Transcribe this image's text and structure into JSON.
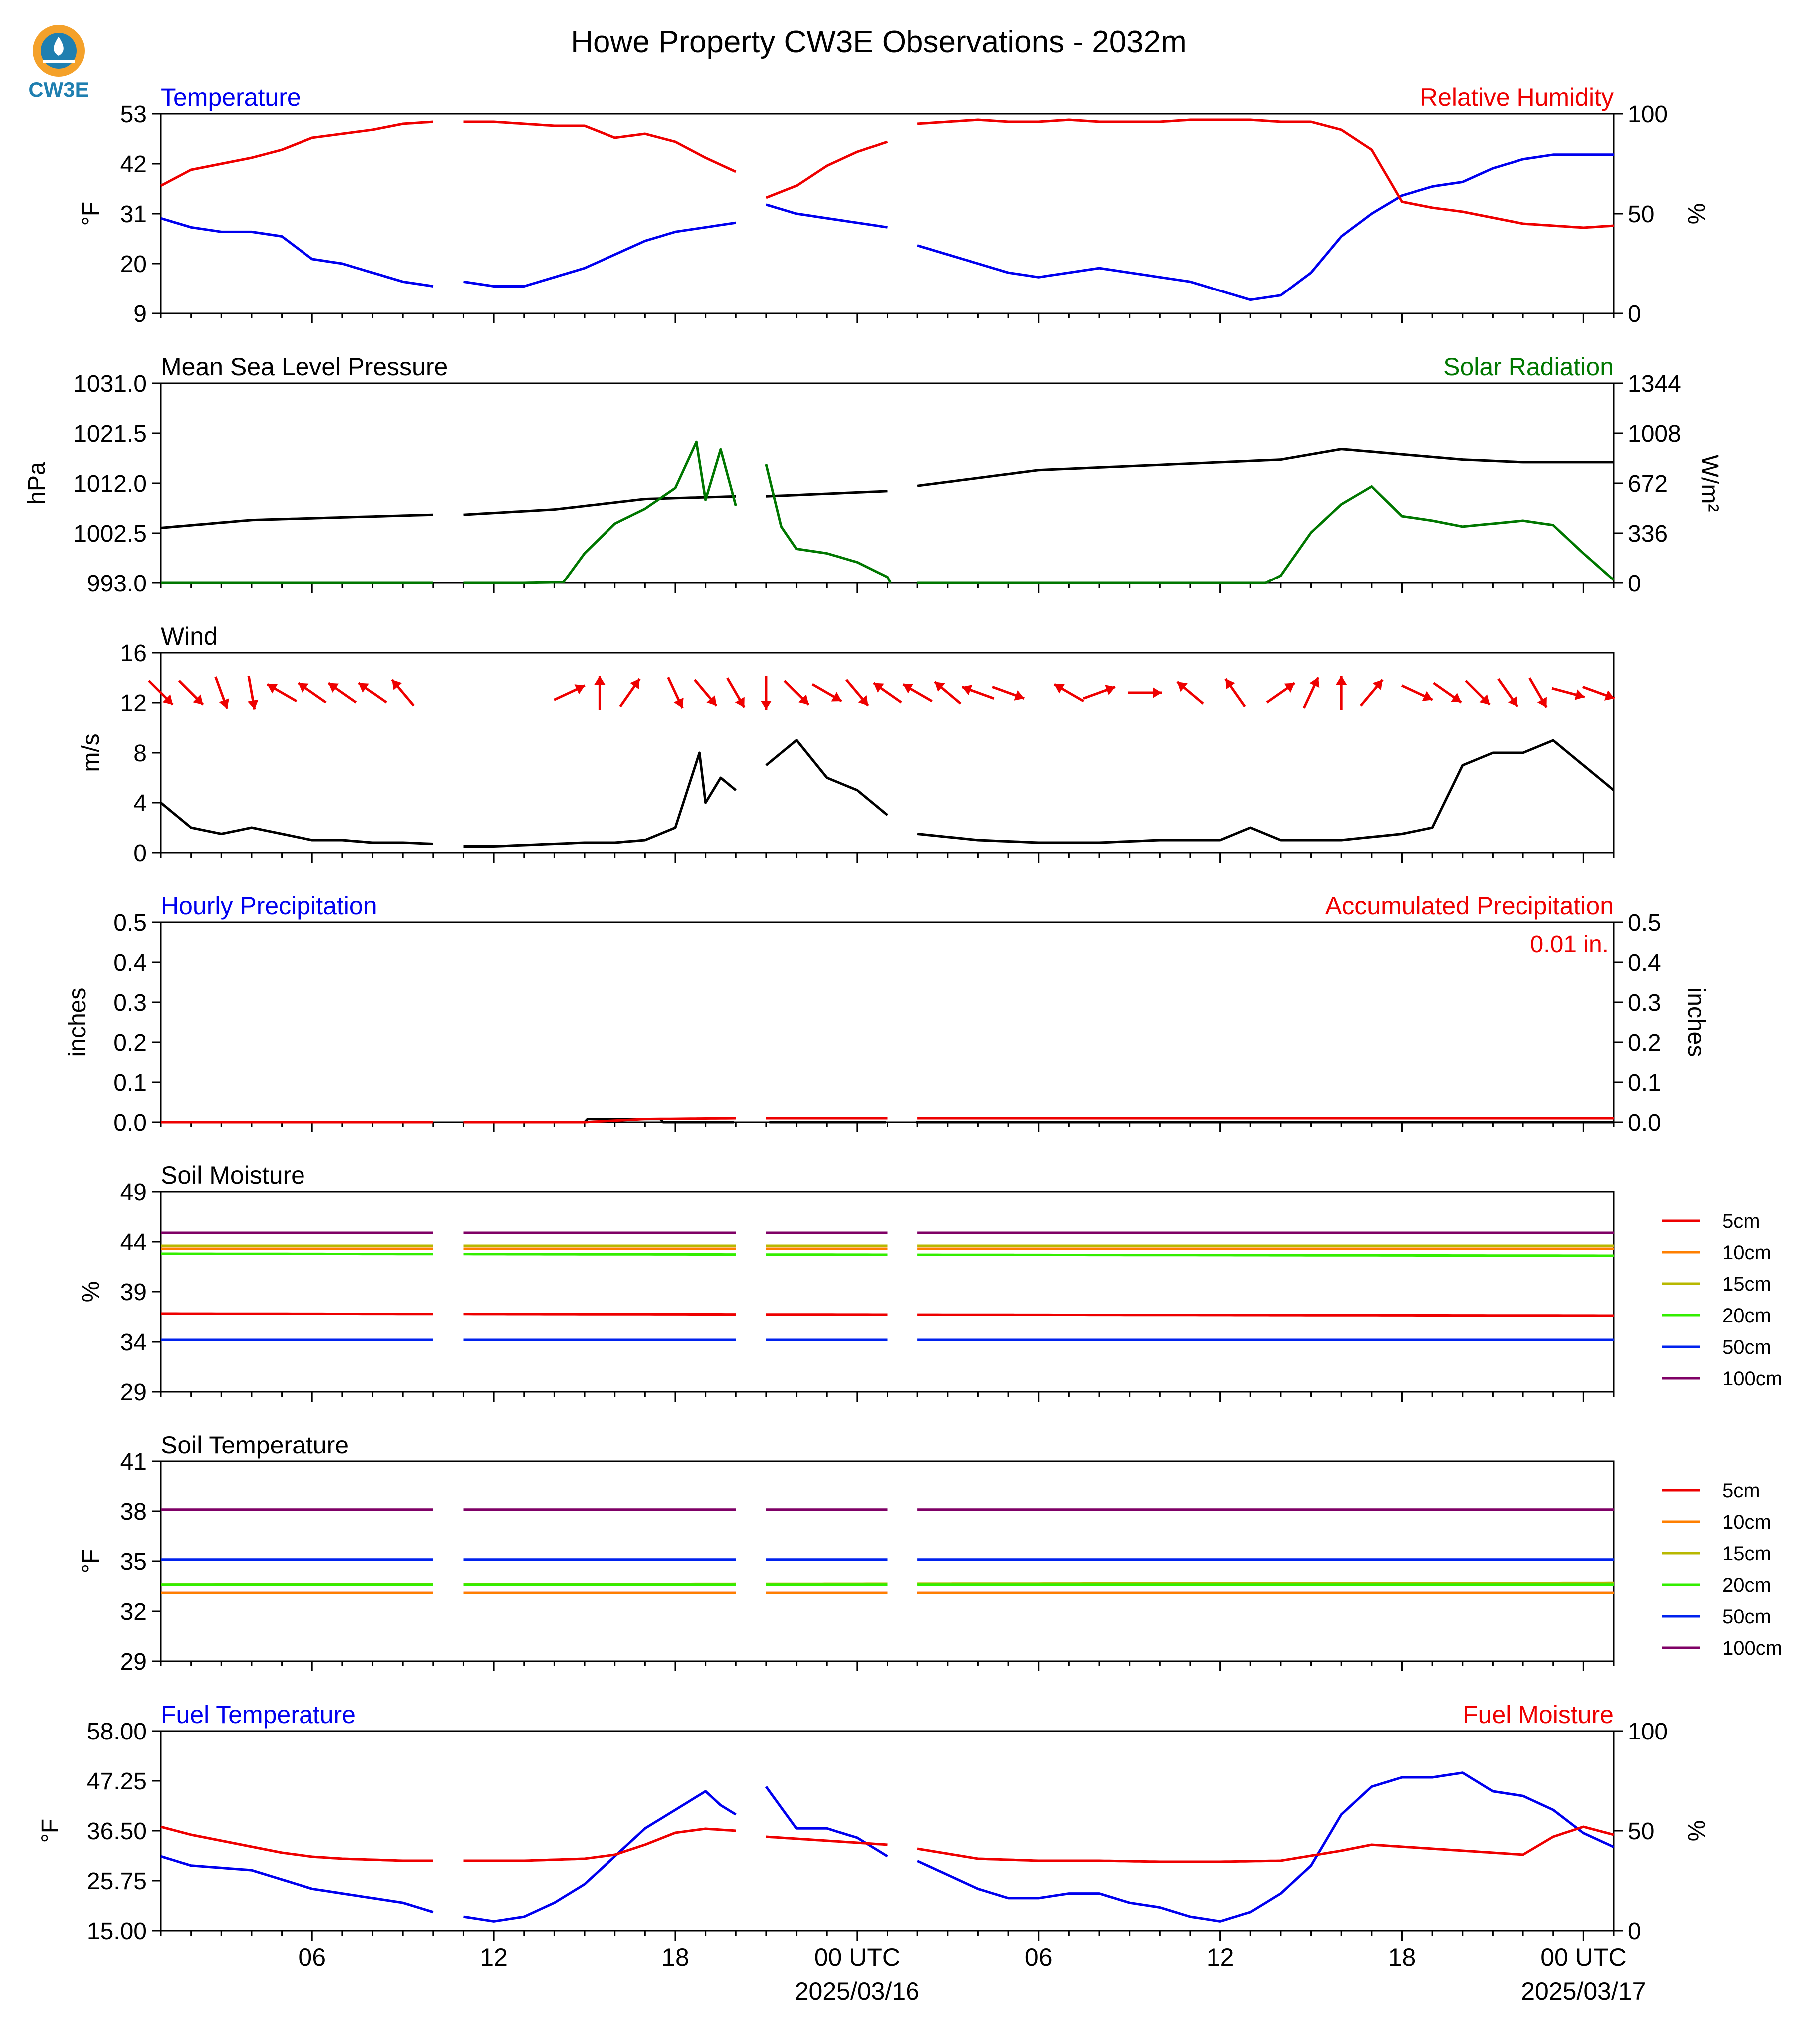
{
  "figure": {
    "title": "Howe Property CW3E Observations - 2032m",
    "logo_text": "CW3E"
  },
  "time_axis": {
    "tick_labels": [
      "06",
      "12",
      "18",
      "00 UTC",
      "06",
      "12",
      "18",
      "00 UTC"
    ],
    "date_labels": [
      "2025/03/16",
      "2025/03/17"
    ],
    "tick_hours": [
      6,
      12,
      18,
      24,
      30,
      36,
      42,
      48
    ],
    "range_hours": [
      1,
      49
    ],
    "data_gaps_hours": [
      [
        10.1,
        10.9
      ],
      [
        20.1,
        21.0
      ],
      [
        25.1,
        25.9
      ]
    ]
  },
  "colors": {
    "blue": "#0000ee",
    "red": "#ee0000",
    "green": "#007700",
    "black": "#000000",
    "depth_5cm": "#ee0000",
    "depth_10cm": "#ff7f00",
    "depth_15cm": "#b8b800",
    "depth_20cm": "#33ee00",
    "depth_50cm": "#0022ee",
    "depth_100cm": "#7f0066"
  },
  "chart_data": [
    {
      "id": "temp_rh",
      "type": "line",
      "title_left": "Temperature",
      "title_right": "Relative Humidity",
      "ylabel_left": "°F",
      "ylabel_right": "%",
      "ylim_left": [
        9,
        53
      ],
      "yticks_left": [
        "9",
        "20",
        "31",
        "42",
        "53"
      ],
      "ylim_right": [
        0,
        100
      ],
      "yticks_right": [
        "0",
        "50",
        "100"
      ],
      "series": [
        {
          "name": "Temperature",
          "axis": "left",
          "color": "#0000ee",
          "x": [
            1,
            2,
            3,
            4,
            5,
            6,
            7,
            8,
            9,
            10,
            11,
            12,
            13,
            14,
            15,
            16,
            17,
            18,
            19,
            20,
            21,
            22,
            23,
            24,
            25,
            26,
            27,
            28,
            29,
            30,
            31,
            32,
            33,
            34,
            35,
            36,
            37,
            38,
            39,
            40,
            41,
            42,
            43,
            44,
            45,
            46,
            47,
            48,
            49
          ],
          "y": [
            30,
            28,
            27,
            27,
            26,
            21,
            20,
            18,
            16,
            15,
            16,
            15,
            15,
            17,
            19,
            22,
            25,
            27,
            28,
            29,
            33,
            31,
            30,
            29,
            28,
            24,
            22,
            20,
            18,
            17,
            18,
            19,
            18,
            17,
            16,
            14,
            12,
            13,
            18,
            26,
            31,
            35,
            37,
            38,
            41,
            43,
            44,
            44,
            44
          ]
        },
        {
          "name": "Relative Humidity",
          "axis": "right",
          "color": "#ee0000",
          "x": [
            1,
            2,
            3,
            4,
            5,
            6,
            7,
            8,
            9,
            10,
            11,
            12,
            13,
            14,
            15,
            16,
            17,
            18,
            19,
            20,
            21,
            22,
            23,
            24,
            25,
            26,
            27,
            28,
            29,
            30,
            31,
            32,
            33,
            34,
            35,
            36,
            37,
            38,
            39,
            40,
            41,
            42,
            43,
            44,
            45,
            46,
            47,
            48,
            49
          ],
          "y": [
            64,
            72,
            75,
            78,
            82,
            88,
            90,
            92,
            95,
            96,
            96,
            96,
            95,
            94,
            94,
            88,
            90,
            86,
            78,
            71,
            58,
            64,
            74,
            81,
            86,
            95,
            96,
            97,
            96,
            96,
            97,
            96,
            96,
            96,
            97,
            97,
            97,
            96,
            96,
            92,
            82,
            56,
            53,
            51,
            48,
            45,
            44,
            43,
            44
          ]
        }
      ]
    },
    {
      "id": "pressure_solar",
      "type": "line",
      "title_left": "Mean Sea Level Pressure",
      "title_right": "Solar Radiation",
      "ylabel_left": "hPa",
      "ylabel_right": "W/m²",
      "ylim_left": [
        993,
        1031
      ],
      "yticks_left": [
        "993.0",
        "1002.5",
        "1012.0",
        "1021.5",
        "1031.0"
      ],
      "ylim_right": [
        0,
        1344
      ],
      "yticks_right": [
        "0",
        "336",
        "672",
        "1008",
        "1344"
      ],
      "series": [
        {
          "name": "Mean Sea Level Pressure",
          "axis": "left",
          "color": "#000000",
          "x": [
            1,
            4,
            7,
            10,
            11,
            14,
            17,
            20,
            21,
            25,
            26,
            30,
            34,
            38,
            40,
            42,
            44,
            46,
            49
          ],
          "y": [
            1003.5,
            1005,
            1005.5,
            1006,
            1006,
            1007,
            1009,
            1009.5,
            1009.5,
            1010.5,
            1011.5,
            1014.5,
            1015.5,
            1016.5,
            1018.5,
            1017.5,
            1016.5,
            1016,
            1016
          ]
        },
        {
          "name": "Solar Radiation",
          "axis": "right",
          "color": "#007700",
          "x": [
            1,
            5,
            10,
            11,
            13,
            14.3,
            15,
            16,
            17,
            18,
            18.7,
            19,
            19.5,
            20,
            21,
            21.5,
            22,
            23,
            24,
            25,
            25.1,
            26,
            30,
            34,
            37.5,
            38,
            39,
            40,
            41,
            42,
            43,
            44,
            45,
            46,
            47,
            48,
            49
          ],
          "y": [
            0,
            0,
            0,
            0,
            0,
            5,
            200,
            400,
            500,
            640,
            950,
            560,
            900,
            520,
            800,
            380,
            230,
            200,
            140,
            40,
            0,
            0,
            0,
            0,
            0,
            50,
            340,
            530,
            650,
            450,
            420,
            380,
            400,
            420,
            390,
            200,
            20
          ]
        }
      ]
    },
    {
      "id": "wind",
      "type": "line",
      "title_left": "Wind",
      "ylabel_left": "m/s",
      "ylim_left": [
        0,
        16
      ],
      "yticks_left": [
        "0",
        "4",
        "8",
        "12",
        "16"
      ],
      "series": [
        {
          "name": "Wind speed",
          "axis": "left",
          "color": "#000000",
          "x": [
            1,
            2,
            3,
            4,
            5,
            6,
            7,
            8,
            9,
            10,
            11,
            12,
            13,
            14,
            15,
            16,
            17,
            18,
            18.8,
            19,
            19.5,
            20,
            21,
            22,
            23,
            24,
            25,
            26,
            28,
            30,
            32,
            34,
            36,
            37,
            38,
            40,
            42,
            43,
            44,
            45,
            46,
            47,
            48,
            49
          ],
          "y": [
            4,
            2,
            1.5,
            2,
            1.5,
            1,
            1,
            0.8,
            0.8,
            0.7,
            0.5,
            0.5,
            0.6,
            0.7,
            0.8,
            0.8,
            1,
            2,
            8,
            4,
            6,
            5,
            7,
            9,
            6,
            5,
            3,
            1.5,
            1,
            0.8,
            0.8,
            1,
            1,
            2,
            1,
            1,
            1.5,
            2,
            7,
            8,
            8,
            9,
            7,
            5
          ]
        },
        {
          "name": "Wind direction",
          "axis": "none",
          "color": "#ee0000",
          "x": [
            1,
            2,
            3,
            4,
            5,
            6,
            7,
            8,
            9,
            14.5,
            15.5,
            16.5,
            18,
            19,
            20,
            21,
            22,
            23,
            24,
            25,
            26,
            27,
            28,
            29,
            31,
            32,
            33.5,
            35,
            36.5,
            38,
            39,
            40,
            41,
            42.5,
            43.5,
            44.5,
            45.5,
            46.5,
            47.5,
            48.5
          ],
          "y": [
            315,
            315,
            340,
            350,
            120,
            125,
            125,
            125,
            140,
            245,
            180,
            215,
            335,
            320,
            330,
            0,
            315,
            300,
            320,
            125,
            120,
            130,
            110,
            290,
            120,
            250,
            270,
            130,
            145,
            235,
            205,
            180,
            220,
            295,
            305,
            315,
            325,
            330,
            285,
            290
          ]
        }
      ]
    },
    {
      "id": "precip",
      "type": "line",
      "title_left": "Hourly Precipitation",
      "title_right": "Accumulated Precipitation",
      "annotation": "0.01 in.",
      "ylabel_left": "inches",
      "ylabel_right": "inches",
      "ylim_left": [
        0,
        0.5
      ],
      "yticks_left": [
        "0.0",
        "0.1",
        "0.2",
        "0.3",
        "0.4",
        "0.5"
      ],
      "ylim_right": [
        0,
        0.5
      ],
      "yticks_right": [
        "0.0",
        "0.1",
        "0.2",
        "0.3",
        "0.4",
        "0.5"
      ],
      "series": [
        {
          "name": "Hourly Precipitation",
          "axis": "left",
          "color": "#000000",
          "x": [
            1,
            15,
            15.1,
            17.5,
            17.6,
            49
          ],
          "y": [
            0,
            0,
            0.008,
            0.008,
            0,
            0
          ]
        },
        {
          "name": "Accumulated Precipitation",
          "axis": "right",
          "color": "#ee0000",
          "x": [
            1,
            15,
            17,
            20,
            21,
            49
          ],
          "y": [
            0,
            0,
            0.008,
            0.01,
            0.01,
            0.01
          ]
        }
      ]
    },
    {
      "id": "soil_moisture",
      "type": "line",
      "title_left": "Soil Moisture",
      "ylabel_left": "%",
      "ylim_left": [
        29,
        49
      ],
      "yticks_left": [
        "29",
        "34",
        "39",
        "44",
        "49"
      ],
      "legend": [
        "5cm",
        "10cm",
        "15cm",
        "20cm",
        "50cm",
        "100cm"
      ],
      "series": [
        {
          "name": "5cm",
          "color": "#ee0000",
          "x": [
            1,
            49
          ],
          "y": [
            36.8,
            36.6
          ]
        },
        {
          "name": "10cm",
          "color": "#ff7f00",
          "x": [
            1,
            49
          ],
          "y": [
            43.3,
            43.3
          ]
        },
        {
          "name": "15cm",
          "color": "#b8b800",
          "x": [
            1,
            49
          ],
          "y": [
            43.6,
            43.6
          ]
        },
        {
          "name": "20cm",
          "color": "#33ee00",
          "x": [
            1,
            49
          ],
          "y": [
            42.8,
            42.6
          ]
        },
        {
          "name": "50cm",
          "color": "#0022ee",
          "x": [
            1,
            49
          ],
          "y": [
            34.2,
            34.2
          ]
        },
        {
          "name": "100cm",
          "color": "#7f0066",
          "x": [
            1,
            49
          ],
          "y": [
            44.9,
            44.9
          ]
        }
      ]
    },
    {
      "id": "soil_temperature",
      "type": "line",
      "title_left": "Soil Temperature",
      "ylabel_left": "°F",
      "ylim_left": [
        29,
        41
      ],
      "yticks_left": [
        "29",
        "32",
        "35",
        "38",
        "41"
      ],
      "legend": [
        "5cm",
        "10cm",
        "15cm",
        "20cm",
        "50cm",
        "100cm"
      ],
      "series": [
        {
          "name": "5cm",
          "color": "#ee0000",
          "x": [
            1,
            49
          ],
          "y": [
            33.1,
            33.1
          ]
        },
        {
          "name": "10cm",
          "color": "#ff7f00",
          "x": [
            1,
            49
          ],
          "y": [
            33.1,
            33.1
          ]
        },
        {
          "name": "15cm",
          "color": "#b8b800",
          "x": [
            1,
            49
          ],
          "y": [
            33.6,
            33.7
          ]
        },
        {
          "name": "20cm",
          "color": "#33ee00",
          "x": [
            1,
            49
          ],
          "y": [
            33.6,
            33.6
          ]
        },
        {
          "name": "50cm",
          "color": "#0022ee",
          "x": [
            1,
            49
          ],
          "y": [
            35.1,
            35.1
          ]
        },
        {
          "name": "100cm",
          "color": "#7f0066",
          "x": [
            1,
            49
          ],
          "y": [
            38.1,
            38.1
          ]
        }
      ]
    },
    {
      "id": "fuel",
      "type": "line",
      "title_left": "Fuel Temperature",
      "title_right": "Fuel Moisture",
      "ylabel_left": "°F",
      "ylabel_right": "%",
      "ylim_left": [
        15,
        58
      ],
      "yticks_left": [
        "15.00",
        "25.75",
        "36.50",
        "47.25",
        "58.00"
      ],
      "ylim_right": [
        0,
        100
      ],
      "yticks_right": [
        "0",
        "50",
        "100"
      ],
      "series": [
        {
          "name": "Fuel Temperature",
          "axis": "left",
          "color": "#0000ee",
          "x": [
            1,
            2,
            3,
            4,
            5,
            6,
            7,
            8,
            9,
            10,
            11,
            12,
            13,
            14,
            15,
            16,
            17,
            18,
            18.5,
            19,
            19.5,
            20,
            21,
            22,
            23,
            24,
            25,
            26,
            27,
            28,
            29,
            30,
            31,
            32,
            33,
            34,
            35,
            36,
            37,
            38,
            39,
            40,
            41,
            42,
            43,
            44,
            45,
            46,
            47,
            48,
            49
          ],
          "y": [
            31,
            29,
            28.5,
            28,
            26,
            24,
            23,
            22,
            21,
            19,
            18,
            17,
            18,
            21,
            25,
            31,
            37,
            41,
            43,
            45,
            42,
            40,
            46,
            37,
            37,
            35,
            31,
            30,
            27,
            24,
            22,
            22,
            23,
            23,
            21,
            20,
            18,
            17,
            19,
            23,
            29,
            40,
            46,
            48,
            48,
            49,
            45,
            44,
            41,
            36,
            33
          ]
        },
        {
          "name": "Fuel Moisture",
          "axis": "right",
          "color": "#ee0000",
          "x": [
            1,
            2,
            3,
            4,
            5,
            6,
            7,
            8,
            9,
            10,
            11,
            12,
            13,
            14,
            15,
            16,
            17,
            18,
            19,
            20,
            21,
            22,
            23,
            24,
            25,
            26,
            28,
            30,
            32,
            34,
            36,
            38,
            40,
            41,
            42,
            44,
            46,
            47,
            48,
            49
          ],
          "y": [
            52,
            48,
            45,
            42,
            39,
            37,
            36,
            35.5,
            35,
            35,
            35,
            35,
            35,
            35.5,
            36,
            38,
            43,
            49,
            51,
            50,
            47,
            46,
            45,
            44,
            43,
            41,
            36,
            35,
            35,
            34.5,
            34.5,
            35,
            40,
            43,
            42,
            40,
            38,
            47,
            52,
            48
          ]
        }
      ]
    }
  ]
}
